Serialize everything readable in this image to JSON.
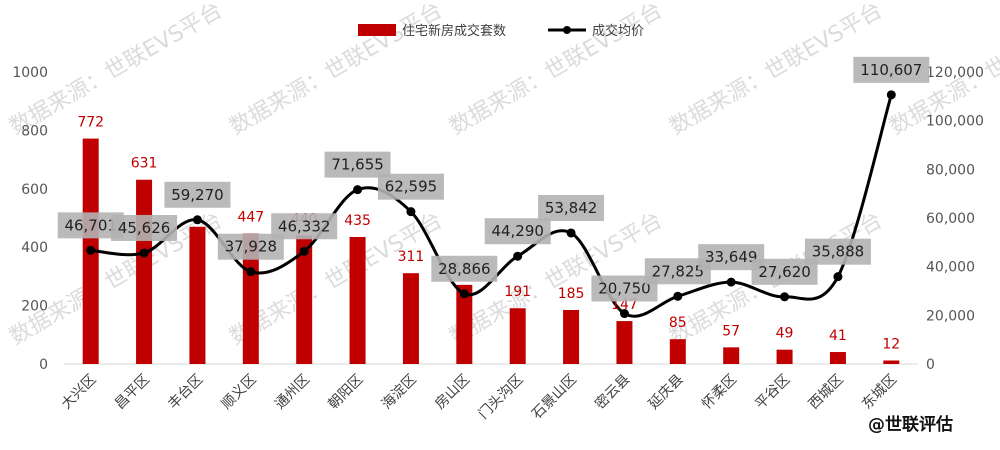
{
  "chart_data": {
    "type": "bar+line",
    "categories": [
      "大兴区",
      "昌平区",
      "丰台区",
      "顺义区",
      "通州区",
      "朝阳区",
      "海淀区",
      "房山区",
      "门头沟区",
      "石景山区",
      "密云县",
      "延庆县",
      "怀柔区",
      "平谷区",
      "西城区",
      "东城区"
    ],
    "series": [
      {
        "name": "住宅新房成交套数",
        "type": "bar",
        "axis": "left",
        "color": "#c00000",
        "values": [
          772,
          631,
          470,
          447,
          440,
          435,
          311,
          271,
          191,
          185,
          147,
          85,
          57,
          49,
          41,
          12
        ],
        "labels": [
          "772",
          "631",
          "",
          "447",
          "440",
          "435",
          "311",
          "271",
          "191",
          "185",
          "147",
          "85",
          "57",
          "49",
          "41",
          "12"
        ]
      },
      {
        "name": "成交均价",
        "type": "line",
        "axis": "right",
        "color": "#000000",
        "values": [
          46701,
          45626,
          59270,
          37928,
          46332,
          71655,
          62595,
          28866,
          44290,
          53842,
          20750,
          27825,
          33649,
          27620,
          35888,
          110607
        ],
        "labels": [
          "46,701",
          "45,626",
          "59,270",
          "37,928",
          "46,332",
          "71,655",
          "62,595",
          "28,866",
          "44,290",
          "53,842",
          "20,750",
          "27,825",
          "33,649",
          "27,620",
          "35,888",
          "110,607"
        ]
      }
    ],
    "y_left": {
      "min": 0,
      "max": 1000,
      "ticks": [
        "0",
        "200",
        "400",
        "600",
        "800",
        "1000"
      ]
    },
    "y_right": {
      "min": 0,
      "max": 120000,
      "ticks": [
        "0",
        "20,000",
        "40,000",
        "60,000",
        "80,000",
        "100,000",
        "120,000"
      ]
    },
    "grid": false,
    "legend_position": "top-center"
  },
  "watermark": {
    "text": "数据来源：世联EVS平台"
  },
  "logo": {
    "text": "@世联评估"
  }
}
